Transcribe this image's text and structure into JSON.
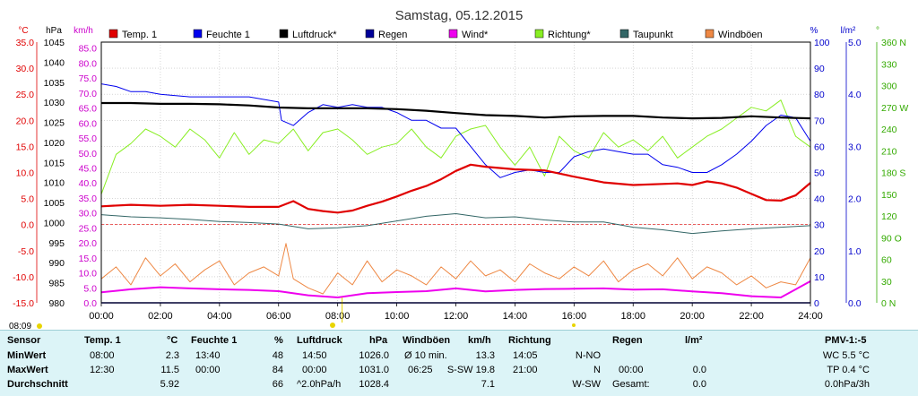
{
  "title": "Samstag, 05.12.2015",
  "time_label": "08:09",
  "axes": {
    "temp": {
      "unit": "°C",
      "color": "#e00000",
      "ticks": [
        "35.0",
        "30.0",
        "25.0",
        "20.0",
        "15.0",
        "10.0",
        "5.0",
        "0.0",
        "-5.0",
        "-10.0",
        "-15.0"
      ],
      "min": -15,
      "max": 35
    },
    "pressure": {
      "unit": "hPa",
      "color": "#000000",
      "ticks": [
        "1045",
        "1040",
        "1035",
        "1030",
        "1025",
        "1020",
        "1015",
        "1010",
        "1005",
        "1000",
        "995",
        "990",
        "985",
        "980"
      ],
      "min": 980,
      "max": 1045
    },
    "wind": {
      "unit": "km/h",
      "color": "#cc00cc",
      "ticks": [
        "85.0",
        "80.0",
        "75.0",
        "70.0",
        "65.0",
        "60.0",
        "55.0",
        "50.0",
        "45.0",
        "40.0",
        "35.0",
        "30.0",
        "25.0",
        "20.0",
        "15.0",
        "10.0",
        "5.0",
        "0.0"
      ],
      "min": 0,
      "max": 87
    },
    "humidity": {
      "unit": "%",
      "color": "#0000cc",
      "ticks": [
        "100",
        "90",
        "80",
        "70",
        "60",
        "50",
        "40",
        "30",
        "20",
        "10",
        "0"
      ],
      "min": 0,
      "max": 100
    },
    "rain": {
      "unit": "l/m²",
      "color": "#0000cc",
      "ticks": [
        "5.0",
        "4.0",
        "3.0",
        "2.0",
        "1.0",
        "0.0"
      ],
      "min": 0,
      "max": 5
    },
    "direction": {
      "unit": "°",
      "color": "#33aa00",
      "ticks": [
        "360 N",
        "330",
        "300",
        "270 W",
        "240",
        "210",
        "180 S",
        "150",
        "120",
        "90 O",
        "60",
        "30",
        "0 N"
      ],
      "min": 0,
      "max": 360
    },
    "x_ticks": [
      "00:00",
      "02:00",
      "04:00",
      "06:00",
      "08:00",
      "10:00",
      "12:00",
      "14:00",
      "16:00",
      "18:00",
      "20:00",
      "22:00",
      "24:00"
    ]
  },
  "legend": [
    {
      "label": "Temp. 1",
      "color": "#e00000"
    },
    {
      "label": "Feuchte 1",
      "color": "#0000ee"
    },
    {
      "label": "Luftdruck*",
      "color": "#000000"
    },
    {
      "label": "Regen",
      "color": "#000099"
    },
    {
      "label": "Wind*",
      "color": "#ee00ee"
    },
    {
      "label": "Richtung*",
      "color": "#88ee22"
    },
    {
      "label": "Taupunkt",
      "color": "#336666"
    },
    {
      "label": "Windböen",
      "color": "#ee8844"
    }
  ],
  "chart_data": {
    "type": "line",
    "title": "Samstag, 05.12.2015",
    "x_unit": "hours",
    "xlim": [
      0,
      24
    ],
    "series": [
      {
        "name": "Temp. 1",
        "axis": "temp",
        "color": "#e00000",
        "x": [
          0,
          1,
          2,
          3,
          4,
          5,
          6,
          6.5,
          7,
          7.5,
          8,
          8.5,
          9,
          9.5,
          10,
          10.5,
          11,
          11.5,
          12,
          12.5,
          13,
          14,
          15,
          16,
          17,
          18,
          19,
          19.5,
          20,
          20.5,
          21,
          21.5,
          22,
          22.5,
          23,
          23.5,
          24
        ],
        "y": [
          3.5,
          3.8,
          3.6,
          3.8,
          3.6,
          3.4,
          3.4,
          4.5,
          3.0,
          2.6,
          2.3,
          2.7,
          3.6,
          4.4,
          5.4,
          6.5,
          7.4,
          8.7,
          10.3,
          11.5,
          11.1,
          10.6,
          10.4,
          9.2,
          8.1,
          7.6,
          7.8,
          7.9,
          7.6,
          8.3,
          7.9,
          7.1,
          5.9,
          4.7,
          4.6,
          5.6,
          8.0
        ]
      },
      {
        "name": "Feuchte 1",
        "axis": "humidity",
        "color": "#0000ee",
        "x": [
          0,
          0.5,
          1,
          1.5,
          2,
          3,
          4,
          5,
          6,
          6.1,
          6.5,
          7,
          7.5,
          8,
          8.5,
          9,
          9.5,
          10,
          10.5,
          11,
          11.5,
          12,
          12.5,
          13,
          13.5,
          14,
          14.5,
          15,
          15.5,
          16,
          16.5,
          17,
          17.5,
          18,
          18.5,
          19,
          19.5,
          20,
          20.5,
          21,
          21.5,
          22,
          22.5,
          23,
          23.5,
          24
        ],
        "y": [
          84,
          83,
          81,
          81,
          80,
          79,
          79,
          79,
          77,
          70,
          68,
          73,
          76,
          75,
          76,
          75,
          75,
          73,
          70,
          70,
          67,
          67,
          60,
          53,
          48,
          50,
          51,
          50,
          50,
          56,
          58,
          59,
          58,
          57,
          57,
          53,
          52,
          50,
          50,
          53,
          57,
          62,
          68,
          72,
          71,
          62
        ]
      },
      {
        "name": "Luftdruck*",
        "axis": "pressure",
        "color": "#000000",
        "x": [
          0,
          1,
          2,
          3,
          4,
          5,
          6,
          7,
          8,
          9,
          10,
          11,
          12,
          13,
          14,
          15,
          16,
          17,
          18,
          19,
          20,
          21,
          22,
          23,
          24
        ],
        "y": [
          1029.8,
          1029.8,
          1029.6,
          1029.6,
          1029.5,
          1029.2,
          1028.7,
          1028.5,
          1028.5,
          1028.5,
          1028.3,
          1027.9,
          1027.3,
          1026.8,
          1026.6,
          1026.2,
          1026.5,
          1026.6,
          1026.6,
          1026.2,
          1026.0,
          1026.1,
          1026.5,
          1026.2,
          1026.0
        ]
      },
      {
        "name": "Regen",
        "axis": "rain",
        "color": "#000099",
        "x": [
          0,
          24
        ],
        "y": [
          0,
          0
        ]
      },
      {
        "name": "Wind*",
        "axis": "wind",
        "color": "#ee00ee",
        "x": [
          0,
          1,
          2,
          3,
          4,
          5,
          6,
          7,
          8,
          9,
          10,
          11,
          12,
          13,
          14,
          15,
          16,
          17,
          18,
          19,
          20,
          21,
          22,
          23,
          24
        ],
        "y": [
          3.5,
          4.5,
          5.2,
          4.8,
          4.5,
          4.3,
          3.9,
          2.5,
          1.8,
          3.2,
          3.6,
          3.9,
          4.8,
          3.8,
          4.3,
          4.6,
          4.7,
          4.8,
          4.4,
          4.5,
          3.8,
          3.2,
          2.2,
          1.8,
          7.2
        ]
      },
      {
        "name": "Richtung*",
        "axis": "direction",
        "color": "#88ee22",
        "x": [
          0,
          0.5,
          1,
          1.5,
          2,
          2.5,
          3,
          3.5,
          4,
          4.5,
          5,
          5.5,
          6,
          6.5,
          7,
          7.5,
          8,
          8.5,
          9,
          9.5,
          10,
          10.5,
          11,
          11.5,
          12,
          12.5,
          13,
          13.5,
          14,
          14.5,
          15,
          15.5,
          16,
          16.5,
          17,
          17.5,
          18,
          18.5,
          19,
          19.5,
          20,
          20.5,
          21,
          21.5,
          22,
          22.5,
          23,
          23.5,
          24
        ],
        "y": [
          150,
          205,
          220,
          240,
          230,
          215,
          240,
          225,
          200,
          235,
          205,
          225,
          220,
          240,
          210,
          235,
          240,
          225,
          205,
          215,
          220,
          240,
          215,
          200,
          230,
          240,
          245,
          215,
          190,
          215,
          175,
          230,
          210,
          200,
          235,
          215,
          225,
          210,
          230,
          200,
          215,
          230,
          240,
          255,
          270,
          265,
          280,
          230,
          215
        ]
      },
      {
        "name": "Taupunkt",
        "axis": "temp",
        "color": "#336666",
        "x": [
          0,
          1,
          2,
          3,
          4,
          5,
          6,
          7,
          8,
          9,
          10,
          11,
          12,
          13,
          14,
          15,
          16,
          17,
          18,
          19,
          20,
          21,
          22,
          23,
          24
        ],
        "y": [
          1.9,
          1.5,
          1.3,
          1.0,
          0.6,
          0.4,
          0.1,
          -0.8,
          -0.6,
          -0.2,
          0.7,
          1.6,
          2.1,
          1.3,
          1.5,
          0.9,
          0.5,
          0.5,
          -0.5,
          -1.0,
          -1.7,
          -1.2,
          -0.8,
          -0.5,
          -0.2
        ]
      },
      {
        "name": "Windböen",
        "axis": "wind",
        "color": "#ee8844",
        "x": [
          0,
          0.5,
          1,
          1.5,
          2,
          2.5,
          3,
          3.5,
          4,
          4.5,
          5,
          5.5,
          6,
          6.25,
          6.5,
          7,
          7.5,
          8,
          8.5,
          9,
          9.5,
          10,
          10.5,
          11,
          11.5,
          12,
          12.5,
          13,
          13.5,
          14,
          14.5,
          15,
          15.5,
          16,
          16.5,
          17,
          17.5,
          18,
          18.5,
          19,
          19.5,
          20,
          20.5,
          21,
          21.5,
          22,
          22.5,
          23,
          23.5,
          24
        ],
        "y": [
          8,
          12,
          6,
          15,
          9,
          13,
          7,
          11,
          14,
          6,
          10,
          12,
          9,
          19.8,
          8,
          5,
          3,
          10,
          6,
          14,
          7,
          11,
          9,
          6,
          12,
          8,
          14,
          9,
          11,
          7,
          13,
          10,
          8,
          12,
          9,
          14,
          7,
          11,
          13,
          9,
          15,
          8,
          12,
          10,
          6,
          9,
          5,
          7,
          6,
          15
        ]
      }
    ]
  },
  "stats": {
    "headers": {
      "sensor": "Sensor",
      "temp": "Temp. 1",
      "temp_unit": "°C",
      "humidity": "Feuchte 1",
      "humidity_unit": "%",
      "pressure": "Luftdruck",
      "pressure_unit": "hPa",
      "gust": "Windböen",
      "gust_unit": "km/h",
      "direction": "Richtung",
      "rain": "Regen",
      "rain_unit": "l/m²",
      "pmv": "PMV-1:-5"
    },
    "rows": [
      {
        "label": "MinWert",
        "temp_time": "08:00",
        "temp_val": "2.3",
        "hum_time": "13:40",
        "hum_val": "48",
        "press_time": "14:50",
        "press_val": "1026.0",
        "gust_time": "Ø 10 min.",
        "gust_val": "13.3",
        "dir_time": "14:05",
        "dir_val": "N-NO",
        "rain_time": "",
        "rain_val": "",
        "pmv": "WC 5.5 °C"
      },
      {
        "label": "MaxWert",
        "temp_time": "12:30",
        "temp_val": "11.5",
        "hum_time": "00:00",
        "hum_val": "84",
        "press_time": "00:00",
        "press_val": "1031.0",
        "gust_time": "06:25",
        "gust_val": "S-SW 19.8",
        "dir_time": "21:00",
        "dir_val": "N",
        "rain_time": "00:00",
        "rain_val": "0.0",
        "pmv": "TP 0.4 °C"
      },
      {
        "label": "Durchschnitt",
        "temp_time": "",
        "temp_val": "5.92",
        "hum_time": "",
        "hum_val": "66",
        "press_time": "^2.0hPa/h",
        "press_val": "1028.4",
        "gust_time": "",
        "gust_val": "7.1",
        "dir_time": "",
        "dir_val": "W-SW",
        "rain_time": "Gesamt:",
        "rain_val": "0.0",
        "pmv": "0.0hPa/3h"
      }
    ]
  }
}
